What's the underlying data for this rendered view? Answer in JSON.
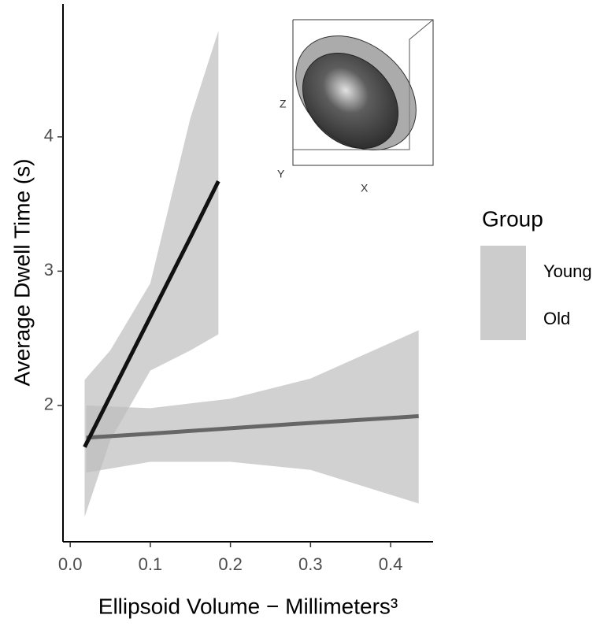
{
  "chart_data": {
    "type": "line",
    "x_label": "Ellipsoid Volume − Millimeters³",
    "y_label": "Average Dwell Time (s)",
    "xlim": [
      -0.009,
      0.453
    ],
    "ylim": [
      0.985,
      4.99
    ],
    "xticks": [
      {
        "value": 0,
        "label": "0.0"
      },
      0.1,
      0.2,
      0.3,
      0.4
    ],
    "yticks": [
      2,
      3,
      4
    ],
    "legend_title": "Group",
    "band_color": "#bdbdbd",
    "series": [
      {
        "name": "Young",
        "color": "#666666",
        "x": [
          0.02,
          0.1,
          0.2,
          0.3,
          0.435
        ],
        "values": [
          1.76,
          1.79,
          1.83,
          1.87,
          1.92
        ],
        "lower": [
          1.5,
          1.58,
          1.58,
          1.52,
          1.27
        ],
        "upper": [
          2.0,
          1.98,
          2.05,
          2.2,
          2.56
        ]
      },
      {
        "name": "Old",
        "color": "#111111",
        "x": [
          0.018,
          0.05,
          0.1,
          0.15,
          0.185
        ],
        "values": [
          1.69,
          2.07,
          2.66,
          3.25,
          3.67
        ],
        "lower": [
          1.17,
          1.74,
          2.26,
          2.41,
          2.53
        ],
        "upper": [
          2.19,
          2.41,
          2.91,
          4.14,
          4.79
        ]
      }
    ],
    "inset": {
      "z_label": "Z",
      "y_label": "Y",
      "x_label": "X"
    }
  }
}
